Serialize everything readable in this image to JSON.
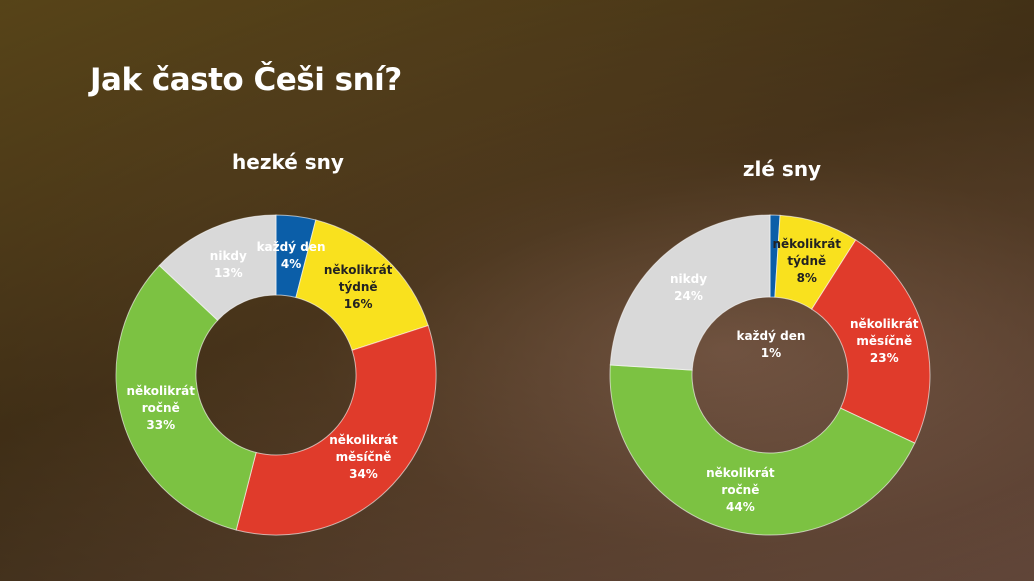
{
  "title": "Jak často Češi sní?",
  "chart_data": [
    {
      "type": "pie",
      "title": "hezké sny",
      "categories": [
        "každý den",
        "několikrát týdně",
        "několikrát měsíčně",
        "několikrát ročně",
        "nikdy"
      ],
      "values": [
        4,
        16,
        34,
        33,
        13
      ],
      "value_labels": [
        "4%",
        "16%",
        "34%",
        "33%",
        "13%"
      ],
      "colors": [
        "#0b5ea8",
        "#f9e11e",
        "#e03b2b",
        "#7cc242",
        "#d9d9d9"
      ]
    },
    {
      "type": "pie",
      "title": "zlé sny",
      "categories": [
        "každý den",
        "několikrát týdně",
        "několikrát měsíčně",
        "několikrát ročně",
        "nikdy"
      ],
      "values": [
        1,
        8,
        23,
        44,
        24
      ],
      "value_labels": [
        "1%",
        "8%",
        "23%",
        "44%",
        "24%"
      ],
      "colors": [
        "#0b5ea8",
        "#f9e11e",
        "#e03b2b",
        "#7cc242",
        "#d9d9d9"
      ]
    }
  ]
}
